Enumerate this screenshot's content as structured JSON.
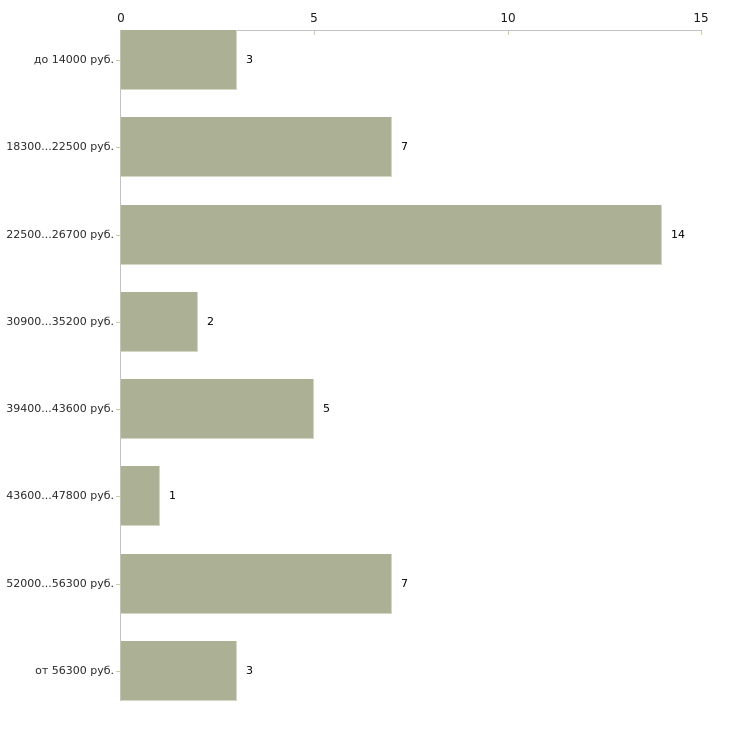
{
  "chart_data": {
    "type": "bar",
    "orientation": "horizontal",
    "title": "",
    "xlabel": "",
    "ylabel": "",
    "categories": [
      "до 14000 руб.",
      "18300...22500 руб.",
      "22500...26700 руб.",
      "30900...35200 руб.",
      "39400...43600 руб.",
      "43600...47800 руб.",
      "52000...56300 руб.",
      "от 56300 руб."
    ],
    "values": [
      3,
      7,
      14,
      2,
      5,
      1,
      7,
      3
    ],
    "xlim": [
      0,
      15
    ],
    "x_ticks": [
      0,
      5,
      10,
      15
    ],
    "grid": false,
    "legend": false,
    "colors": {
      "bar": "#acb095",
      "bar_edge": "#d5d7c6",
      "axis_line": "#c2c2c2",
      "tick_mark": "#c9cca6",
      "category_text": "#2b2b2b",
      "value_text": "#000000",
      "background": "#ffffff"
    }
  }
}
